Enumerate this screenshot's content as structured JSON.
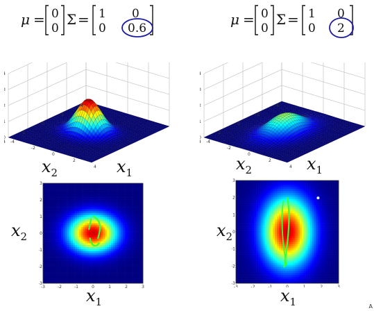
{
  "formulas": [
    {
      "mu_symbol": "μ",
      "equals": "=",
      "sigma_symbol": "Σ",
      "mu_vector": [
        "0",
        "0"
      ],
      "sigma_matrix": [
        [
          "1",
          "0"
        ],
        [
          "0",
          "0.6"
        ]
      ],
      "circled_entry": "0.6"
    },
    {
      "mu_symbol": "μ",
      "equals": "=",
      "sigma_symbol": "Σ",
      "mu_vector": [
        "0",
        "0"
      ],
      "sigma_matrix": [
        [
          "1",
          "0"
        ],
        [
          "0",
          "2"
        ]
      ],
      "circled_entry": "2"
    }
  ],
  "surface_plots": [
    {
      "zlim": [
        0,
        0.4
      ],
      "zticks": [
        "0",
        "0.1",
        "0.2",
        "0.3",
        "0.4"
      ],
      "xticks": [
        "-4",
        "-2",
        "0",
        "2",
        "4"
      ],
      "yticks": [
        "4",
        "2",
        "0",
        "-2",
        "-4"
      ],
      "x1_label": "x",
      "x1_sub": "1",
      "x2_label": "x",
      "x2_sub": "2",
      "sigma22": 0.6
    },
    {
      "zlim": [
        0,
        0.4
      ],
      "zticks": [
        "0",
        "0.1",
        "0.2",
        "0.3",
        "0.4"
      ],
      "xticks": [
        "-4",
        "-2",
        "0",
        "2",
        "4"
      ],
      "yticks": [
        "4",
        "2",
        "0",
        "-2",
        "-4"
      ],
      "x1_label": "x",
      "x1_sub": "1",
      "x2_label": "x",
      "x2_sub": "2",
      "sigma22": 2
    }
  ],
  "heatmaps": [
    {
      "ticks": [
        "-3",
        "-2",
        "-1",
        "0",
        "1",
        "2",
        "3"
      ],
      "x1_label": "x",
      "x1_sub": "1",
      "x2_label": "x",
      "x2_sub": "2",
      "sigma22": 0.6
    },
    {
      "ticks": [
        "-3",
        "-2",
        "-1",
        "0",
        "1",
        "2",
        "3"
      ],
      "x1_label": "x",
      "x1_sub": "1",
      "x2_label": "x",
      "x2_sub": "2",
      "sigma22": 2
    }
  ],
  "colors": {
    "annotation": "#1a1aa0",
    "pen": "#3cff3c"
  },
  "corner_mark": "A"
}
